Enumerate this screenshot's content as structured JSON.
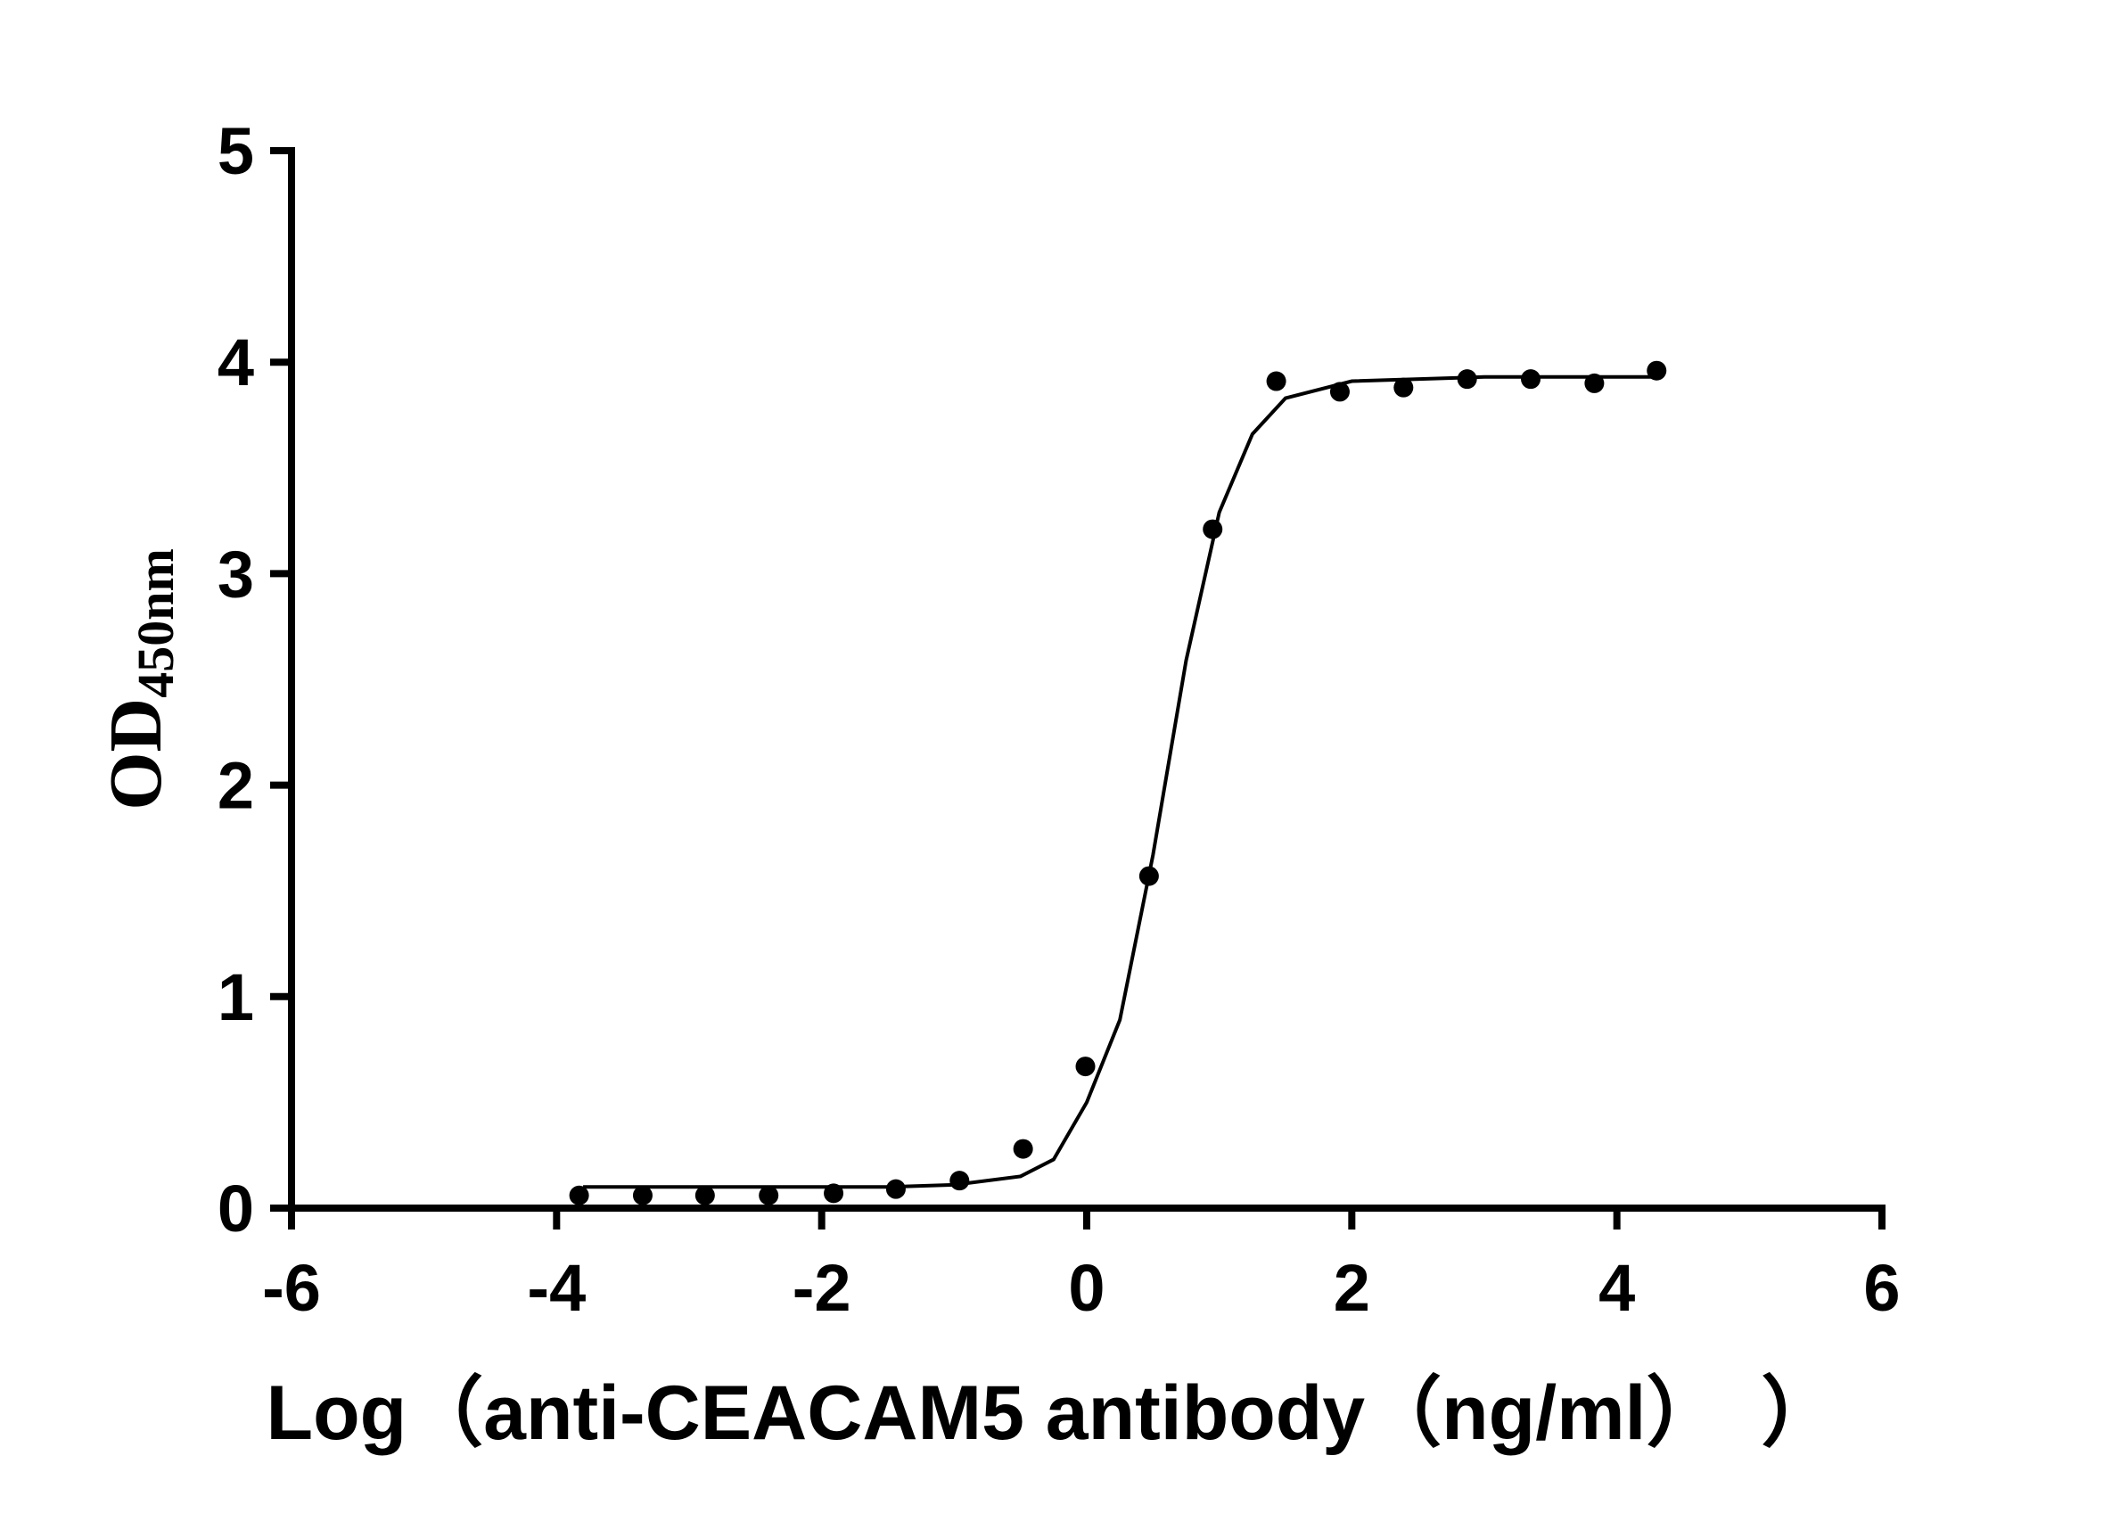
{
  "chart_data": {
    "type": "scatter",
    "x_label": "Log（anti-CEACAM5 antibody（ng/ml）　）",
    "y_label": "OD",
    "y_label_sub": "450nm",
    "xlim": [
      -6,
      6
    ],
    "xticks": [
      -6,
      -4,
      -2,
      0,
      2,
      4,
      6
    ],
    "ylim": [
      0,
      5
    ],
    "yticks": [
      0,
      1,
      2,
      3,
      4,
      5
    ],
    "grid": false,
    "series": [
      {
        "type": "scatter",
        "color": "#000000",
        "x": [
          -3.83,
          -3.35,
          -2.88,
          -2.4,
          -1.91,
          -1.44,
          -0.96,
          -0.48,
          -0.01,
          0.47,
          0.95,
          1.43,
          1.91,
          2.39,
          2.87,
          3.35,
          3.83,
          4.3
        ],
        "values": [
          0.06,
          0.06,
          0.06,
          0.06,
          0.07,
          0.09,
          0.13,
          0.28,
          0.67,
          1.57,
          3.21,
          3.91,
          3.86,
          3.88,
          3.92,
          3.92,
          3.9,
          3.96
        ]
      },
      {
        "type": "line",
        "color": "#000000",
        "x": [
          -3.8,
          -3,
          -2,
          -1.5,
          -1,
          -0.5,
          -0.25,
          0,
          0.25,
          0.5,
          0.75,
          1,
          1.25,
          1.5,
          2,
          3,
          4.3
        ],
        "values": [
          0.1,
          0.1,
          0.1,
          0.1,
          0.11,
          0.15,
          0.23,
          0.5,
          0.89,
          1.67,
          2.59,
          3.29,
          3.66,
          3.83,
          3.91,
          3.93,
          3.93
        ]
      }
    ]
  }
}
